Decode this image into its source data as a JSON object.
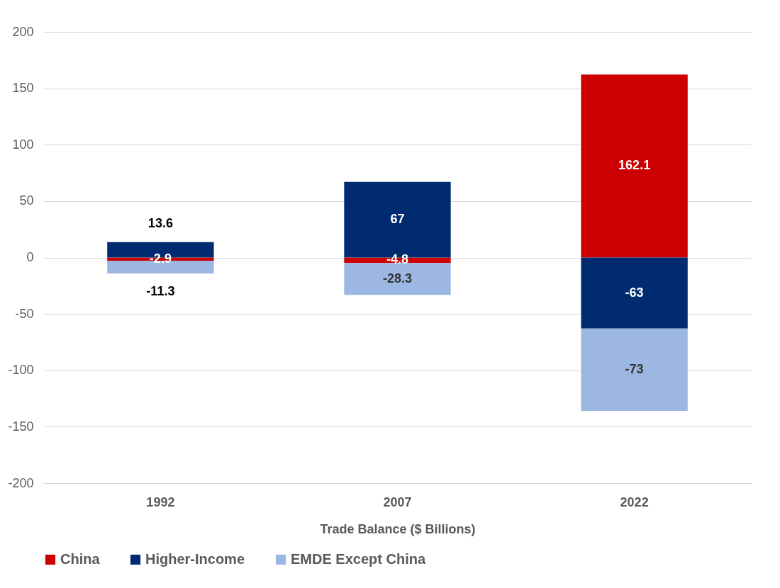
{
  "chart_data": {
    "type": "bar",
    "stacked": true,
    "xlabel": "Trade Balance ($ Billions)",
    "categories": [
      "1992",
      "2007",
      "2022"
    ],
    "series": [
      {
        "name": "China",
        "color": "#cc0000",
        "values": [
          -2.9,
          -4.8,
          162.1
        ]
      },
      {
        "name": "Higher-Income",
        "color": "#002b70",
        "values": [
          13.6,
          67,
          -63
        ]
      },
      {
        "name": "EMDE Except China",
        "color": "#9cb8e2",
        "values": [
          -11.3,
          -28.3,
          -73
        ]
      }
    ],
    "ylim": [
      -200,
      200
    ],
    "yticks": [
      -200,
      -150,
      -100,
      -50,
      0,
      50,
      100,
      150,
      200
    ],
    "grid": "y",
    "legend": "bottom",
    "data_labels": true
  }
}
